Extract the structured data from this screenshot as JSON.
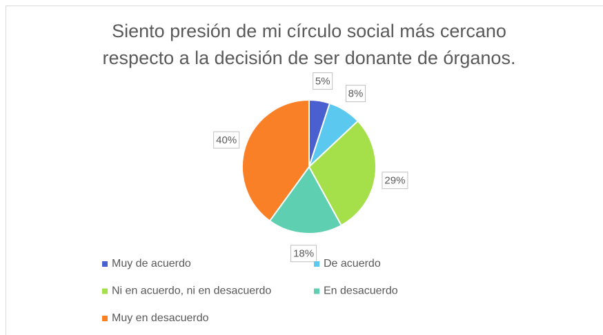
{
  "chart_data": {
    "type": "pie",
    "title": [
      "Siento presión de mi  círculo social más cercano",
      "respecto a la decisión de ser donante de órganos."
    ],
    "categories": [
      "Muy de acuerdo",
      "De acuerdo",
      "Ni en acuerdo, ni en desacuerdo",
      "En desacuerdo",
      "Muy en desacuerdo"
    ],
    "values": [
      5,
      8,
      29,
      18,
      40
    ],
    "value_labels": [
      "5%",
      "8%",
      "29%",
      "18%",
      "40%"
    ],
    "colors": [
      "#4a5fd0",
      "#5bc8f0",
      "#a5e04a",
      "#5ecfb0",
      "#fa8028"
    ],
    "legend": "bottom"
  }
}
